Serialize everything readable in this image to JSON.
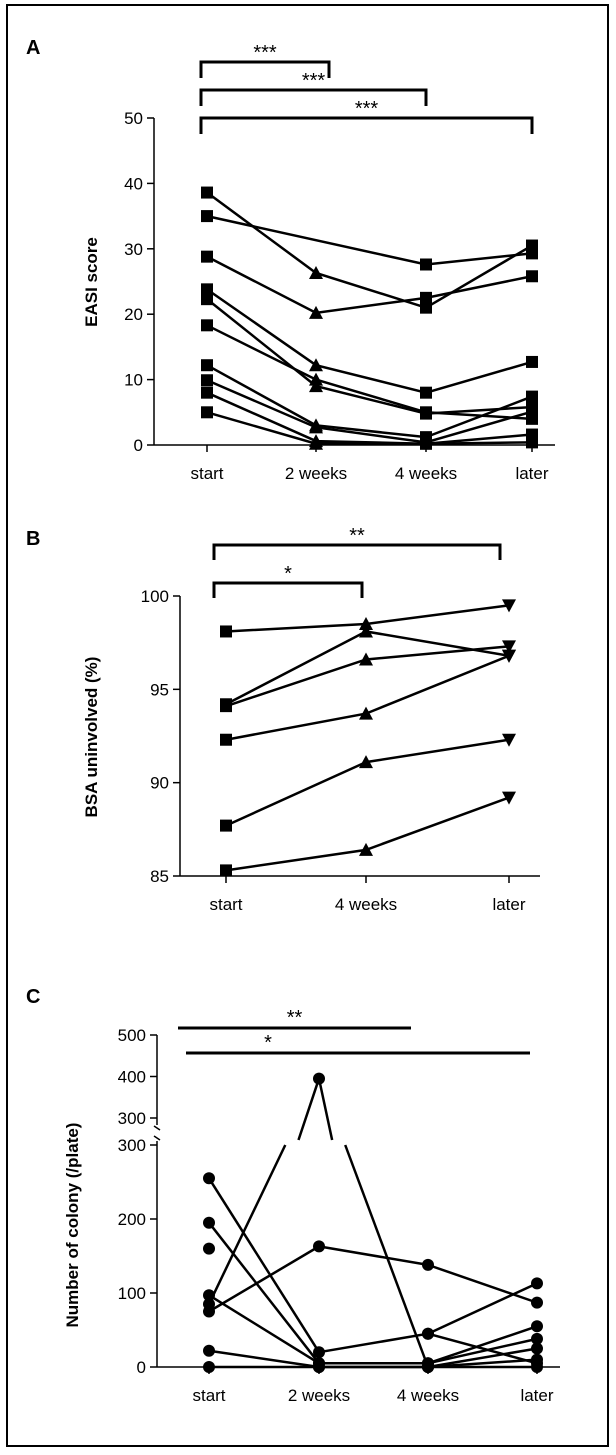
{
  "chart_data": [
    {
      "panel": "A",
      "type": "line",
      "ylabel": "EASI score",
      "categories": [
        "start",
        "2 weeks",
        "4 weeks",
        "later"
      ],
      "ylim": [
        0,
        50
      ],
      "yticks": [
        0,
        10,
        20,
        30,
        40,
        50
      ],
      "markers": [
        "square",
        "triangle",
        "square",
        "square"
      ],
      "series": [
        {
          "values": [
            38.6,
            26.3,
            21.0,
            30.5
          ]
        },
        {
          "values": [
            35.0,
            null,
            27.6,
            29.3
          ]
        },
        {
          "values": [
            28.8,
            20.2,
            22.5,
            25.8
          ]
        },
        {
          "values": [
            23.8,
            12.2,
            8.0,
            12.7
          ]
        },
        {
          "values": [
            22.3,
            9.0,
            4.8,
            5.8
          ]
        },
        {
          "values": [
            18.3,
            10.0,
            5.0,
            4.0
          ]
        },
        {
          "values": [
            12.2,
            3.0,
            1.2,
            7.4
          ]
        },
        {
          "values": [
            9.9,
            2.7,
            0.4,
            5.1
          ]
        },
        {
          "values": [
            8.0,
            0.6,
            0.2,
            1.6
          ]
        },
        {
          "values": [
            5.0,
            0.2,
            0.2,
            0.4
          ]
        }
      ],
      "significance": [
        {
          "from": "start",
          "to": "2 weeks",
          "label": "***"
        },
        {
          "from": "start",
          "to": "4 weeks",
          "label": "***"
        },
        {
          "from": "start",
          "to": "later",
          "label": "***"
        }
      ]
    },
    {
      "panel": "B",
      "type": "line",
      "ylabel": "BSA uninvolved (%)",
      "categories": [
        "start",
        "4 weeks",
        "later"
      ],
      "ylim": [
        85,
        100
      ],
      "yticks": [
        85,
        90,
        95,
        100
      ],
      "markers": [
        "square",
        "triangle",
        "inverted-triangle"
      ],
      "series": [
        {
          "values": [
            98.1,
            98.5,
            99.5
          ]
        },
        {
          "values": [
            94.2,
            98.1,
            96.8
          ]
        },
        {
          "values": [
            94.1,
            96.6,
            97.3
          ]
        },
        {
          "values": [
            92.3,
            93.7,
            96.8
          ]
        },
        {
          "values": [
            87.7,
            91.1,
            92.3
          ]
        },
        {
          "values": [
            85.3,
            86.4,
            89.2
          ]
        }
      ],
      "significance": [
        {
          "from": "start",
          "to": "4 weeks",
          "label": "*"
        },
        {
          "from": "start",
          "to": "later",
          "label": "**"
        }
      ]
    },
    {
      "panel": "C",
      "type": "line",
      "ylabel": "Number of colony (/plate)",
      "categories": [
        "start",
        "2 weeks",
        "4 weeks",
        "later"
      ],
      "ylim": [
        0,
        500
      ],
      "axis_break": [
        300,
        300
      ],
      "yticks_lower": [
        0,
        100,
        200,
        300
      ],
      "yticks_upper": [
        300,
        400,
        500
      ],
      "markers": [
        "circle",
        "circle",
        "circle",
        "circle"
      ],
      "series": [
        {
          "values": [
            255,
            20,
            45,
            113
          ]
        },
        {
          "values": [
            195,
            5,
            5,
            55
          ]
        },
        {
          "values": [
            160,
            null,
            45,
            5
          ]
        },
        {
          "values": [
            97,
            5,
            5,
            38
          ]
        },
        {
          "values": [
            85,
            395,
            0,
            25
          ]
        },
        {
          "values": [
            75,
            163,
            138,
            87
          ]
        },
        {
          "values": [
            22,
            0,
            0,
            10
          ]
        },
        {
          "values": [
            0,
            0,
            0,
            0
          ]
        }
      ],
      "significance": [
        {
          "from": "start",
          "to": "4 weeks",
          "label": "**"
        },
        {
          "from": "start",
          "to": "later",
          "label": "*"
        }
      ]
    }
  ]
}
